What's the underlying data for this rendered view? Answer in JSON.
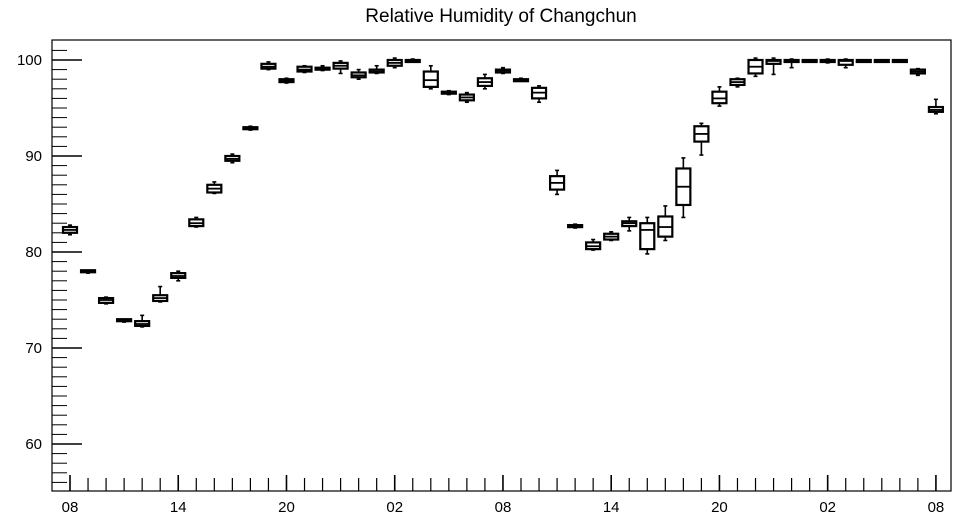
{
  "chart_data": {
    "type": "boxplot",
    "title": "Relative Humidity of Changchun",
    "xlabel": "",
    "ylabel": "",
    "ylim": [
      55,
      102
    ],
    "yticks": [
      60,
      70,
      80,
      90,
      100
    ],
    "x_tick_labels": [
      "08",
      "14",
      "20",
      "02",
      "08",
      "14",
      "20",
      "02",
      "08"
    ],
    "x_tick_hours": [
      0,
      6,
      12,
      18,
      24,
      30,
      36,
      42,
      48
    ],
    "hours_per_tick": 1,
    "grid": false,
    "boxes": [
      {
        "hour": 0,
        "min": 81.8,
        "q1": 82.0,
        "median": 82.3,
        "q3": 82.6,
        "max": 82.8
      },
      {
        "hour": 1,
        "min": 77.8,
        "q1": 77.9,
        "median": 78.0,
        "q3": 78.1,
        "max": 78.1
      },
      {
        "hour": 2,
        "min": 74.6,
        "q1": 74.7,
        "median": 75.0,
        "q3": 75.2,
        "max": 75.3
      },
      {
        "hour": 3,
        "min": 72.7,
        "q1": 72.8,
        "median": 72.9,
        "q3": 73.0,
        "max": 73.0
      },
      {
        "hour": 4,
        "min": 72.2,
        "q1": 72.3,
        "median": 72.5,
        "q3": 72.8,
        "max": 73.4
      },
      {
        "hour": 5,
        "min": 74.8,
        "q1": 74.9,
        "median": 75.2,
        "q3": 75.5,
        "max": 76.4
      },
      {
        "hour": 6,
        "min": 77.0,
        "q1": 77.3,
        "median": 77.5,
        "q3": 77.8,
        "max": 78.0
      },
      {
        "hour": 7,
        "min": 82.6,
        "q1": 82.7,
        "median": 83.0,
        "q3": 83.4,
        "max": 83.6
      },
      {
        "hour": 8,
        "min": 86.1,
        "q1": 86.2,
        "median": 86.6,
        "q3": 87.0,
        "max": 87.3
      },
      {
        "hour": 9,
        "min": 89.3,
        "q1": 89.5,
        "median": 89.7,
        "q3": 90.0,
        "max": 90.2
      },
      {
        "hour": 10,
        "min": 92.7,
        "q1": 92.8,
        "median": 92.9,
        "q3": 93.0,
        "max": 93.1
      },
      {
        "hour": 11,
        "min": 99.0,
        "q1": 99.1,
        "median": 99.3,
        "q3": 99.6,
        "max": 99.8
      },
      {
        "hour": 12,
        "min": 97.6,
        "q1": 97.7,
        "median": 97.9,
        "q3": 98.0,
        "max": 98.1
      },
      {
        "hour": 13,
        "min": 98.7,
        "q1": 98.8,
        "median": 99.0,
        "q3": 99.3,
        "max": 99.4
      },
      {
        "hour": 14,
        "min": 98.9,
        "q1": 99.0,
        "median": 99.1,
        "q3": 99.2,
        "max": 99.4
      },
      {
        "hour": 15,
        "min": 98.6,
        "q1": 99.1,
        "median": 99.4,
        "q3": 99.7,
        "max": 99.9
      },
      {
        "hour": 16,
        "min": 98.0,
        "q1": 98.2,
        "median": 98.4,
        "q3": 98.7,
        "max": 99.0
      },
      {
        "hour": 17,
        "min": 98.6,
        "q1": 98.7,
        "median": 98.8,
        "q3": 99.0,
        "max": 99.4
      },
      {
        "hour": 18,
        "min": 99.2,
        "q1": 99.4,
        "median": 99.7,
        "q3": 100.0,
        "max": 100.2
      },
      {
        "hour": 19,
        "min": 99.9,
        "q1": 100.0,
        "median": 100.0,
        "q3": 100.0,
        "max": 100.1
      },
      {
        "hour": 20,
        "min": 97.0,
        "q1": 97.2,
        "median": 97.9,
        "q3": 98.8,
        "max": 99.4
      },
      {
        "hour": 21,
        "min": 96.4,
        "q1": 96.5,
        "median": 96.6,
        "q3": 96.7,
        "max": 96.8
      },
      {
        "hour": 22,
        "min": 95.6,
        "q1": 95.8,
        "median": 96.1,
        "q3": 96.4,
        "max": 96.6
      },
      {
        "hour": 23,
        "min": 97.0,
        "q1": 97.3,
        "median": 97.7,
        "q3": 98.1,
        "max": 98.5
      },
      {
        "hour": 24,
        "min": 98.6,
        "q1": 98.7,
        "median": 98.9,
        "q3": 99.0,
        "max": 99.2
      },
      {
        "hour": 25,
        "min": 97.8,
        "q1": 97.9,
        "median": 97.9,
        "q3": 98.0,
        "max": 98.1
      },
      {
        "hour": 26,
        "min": 95.6,
        "q1": 96.0,
        "median": 96.6,
        "q3": 97.1,
        "max": 97.3
      },
      {
        "hour": 27,
        "min": 86.0,
        "q1": 86.5,
        "median": 87.2,
        "q3": 87.9,
        "max": 88.5
      },
      {
        "hour": 28,
        "min": 82.5,
        "q1": 82.6,
        "median": 82.7,
        "q3": 82.8,
        "max": 82.9
      },
      {
        "hour": 29,
        "min": 80.2,
        "q1": 80.3,
        "median": 80.6,
        "q3": 81.0,
        "max": 81.3
      },
      {
        "hour": 30,
        "min": 81.2,
        "q1": 81.3,
        "median": 81.6,
        "q3": 81.9,
        "max": 82.1
      },
      {
        "hour": 31,
        "min": 82.2,
        "q1": 82.7,
        "median": 83.0,
        "q3": 83.2,
        "max": 83.6
      },
      {
        "hour": 32,
        "min": 79.8,
        "q1": 80.3,
        "median": 82.3,
        "q3": 83.0,
        "max": 83.6
      },
      {
        "hour": 33,
        "min": 81.2,
        "q1": 81.6,
        "median": 82.6,
        "q3": 83.7,
        "max": 84.8
      },
      {
        "hour": 34,
        "min": 83.6,
        "q1": 84.9,
        "median": 86.8,
        "q3": 88.7,
        "max": 89.8
      },
      {
        "hour": 35,
        "min": 90.1,
        "q1": 91.5,
        "median": 92.3,
        "q3": 93.1,
        "max": 93.4
      },
      {
        "hour": 36,
        "min": 95.2,
        "q1": 95.5,
        "median": 96.0,
        "q3": 96.7,
        "max": 97.2
      },
      {
        "hour": 37,
        "min": 97.2,
        "q1": 97.4,
        "median": 97.7,
        "q3": 98.0,
        "max": 98.1
      },
      {
        "hour": 38,
        "min": 98.3,
        "q1": 98.6,
        "median": 99.3,
        "q3": 100.0,
        "max": 100.2
      },
      {
        "hour": 39,
        "min": 98.5,
        "q1": 99.6,
        "median": 99.9,
        "q3": 100.0,
        "max": 100.2
      },
      {
        "hour": 40,
        "min": 99.2,
        "q1": 99.9,
        "median": 100.0,
        "q3": 100.0,
        "max": 100.1
      },
      {
        "hour": 41,
        "min": 99.9,
        "q1": 100.0,
        "median": 100.0,
        "q3": 100.0,
        "max": 100.0
      },
      {
        "hour": 42,
        "min": 99.7,
        "q1": 99.9,
        "median": 100.0,
        "q3": 100.0,
        "max": 100.1
      },
      {
        "hour": 43,
        "min": 99.2,
        "q1": 99.5,
        "median": 99.9,
        "q3": 100.0,
        "max": 100.1
      },
      {
        "hour": 44,
        "min": 99.9,
        "q1": 100.0,
        "median": 100.0,
        "q3": 100.0,
        "max": 100.0
      },
      {
        "hour": 45,
        "min": 100.0,
        "q1": 100.0,
        "median": 100.0,
        "q3": 100.0,
        "max": 100.0
      },
      {
        "hour": 46,
        "min": 100.0,
        "q1": 100.0,
        "median": 100.0,
        "q3": 100.0,
        "max": 100.0
      },
      {
        "hour": 47,
        "min": 98.4,
        "q1": 98.6,
        "median": 98.8,
        "q3": 99.0,
        "max": 99.1
      },
      {
        "hour": 48,
        "min": 94.4,
        "q1": 94.6,
        "median": 94.8,
        "q3": 95.1,
        "max": 95.9
      }
    ]
  }
}
